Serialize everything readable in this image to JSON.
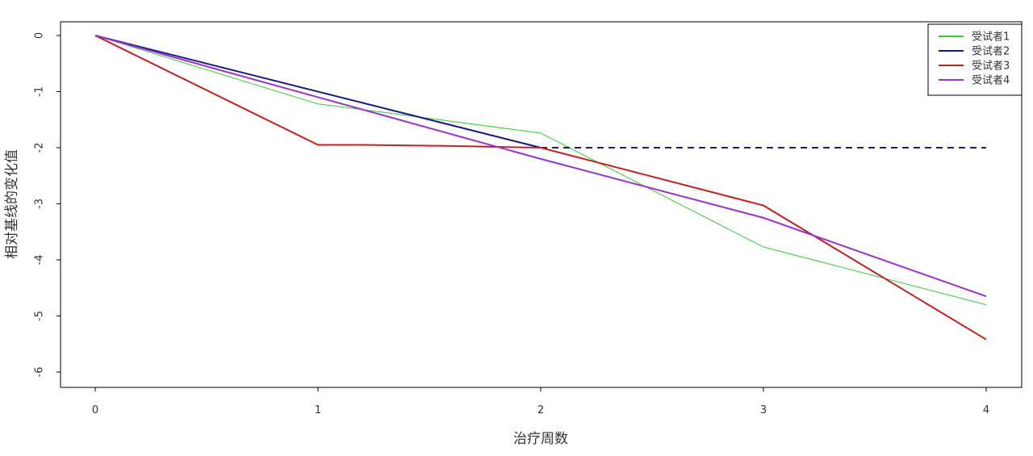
{
  "chart_data": {
    "type": "line",
    "title": "",
    "xlabel": "治疗周数",
    "ylabel": "相对基线的变化值",
    "xlim": [
      0,
      4
    ],
    "ylim": [
      -6,
      0
    ],
    "x_ticks": [
      0,
      1,
      2,
      3,
      4
    ],
    "y_ticks": [
      0,
      -1,
      -2,
      -3,
      -4,
      -5,
      -6
    ],
    "x_tick_labels": [
      "0",
      "1",
      "2",
      "3",
      "4"
    ],
    "y_tick_labels": [
      "0",
      "-1",
      "-2",
      "-3",
      "-4",
      "-5",
      "-6"
    ],
    "grid": false,
    "legend_position": "top-right",
    "series": [
      {
        "name": "受试者1",
        "color": "#33cc33",
        "width": 1,
        "points": [
          [
            0,
            0
          ],
          [
            1,
            -1.22
          ],
          [
            1.2,
            -1.32
          ],
          [
            2,
            -1.74
          ],
          [
            3,
            -3.77
          ],
          [
            4,
            -4.8
          ]
        ]
      },
      {
        "name": "受试者2",
        "color": "#1a1a80",
        "width": 2,
        "points": [
          [
            0,
            0
          ],
          [
            2,
            -2
          ]
        ],
        "dashed_continuation": [
          [
            2,
            -2
          ],
          [
            4,
            -2
          ]
        ]
      },
      {
        "name": "受试者3",
        "color": "#c42020",
        "width": 2,
        "points": [
          [
            0,
            0
          ],
          [
            1,
            -1.95
          ],
          [
            1.2,
            -1.95
          ],
          [
            1.6,
            -1.97
          ],
          [
            2,
            -2.0
          ],
          [
            3,
            -3.03
          ],
          [
            4,
            -5.42
          ]
        ]
      },
      {
        "name": "受试者4",
        "color": "#9933cc",
        "width": 2,
        "points": [
          [
            0,
            0
          ],
          [
            1,
            -1.1
          ],
          [
            2,
            -2.2
          ],
          [
            3,
            -3.25
          ],
          [
            4,
            -4.65
          ]
        ]
      }
    ]
  }
}
